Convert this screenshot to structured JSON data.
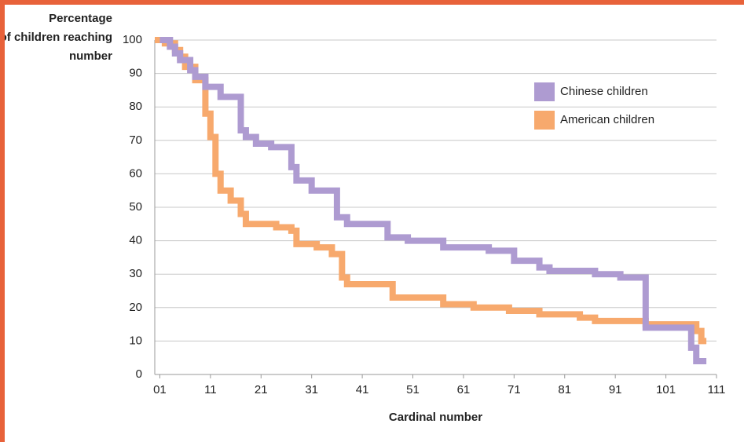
{
  "chart_data": {
    "type": "line",
    "step": true,
    "ylabel": "Percentage of children reaching number",
    "xlabel": "Cardinal number",
    "xlim": [
      0,
      111
    ],
    "ylim": [
      0,
      100
    ],
    "xticks": [
      {
        "value": 1,
        "label": "01"
      },
      11,
      21,
      31,
      41,
      51,
      61,
      71,
      81,
      91,
      101,
      111
    ],
    "yticks": [
      0,
      10,
      20,
      30,
      40,
      50,
      60,
      70,
      80,
      90,
      100
    ],
    "grid": true,
    "legend": "upper right",
    "series": [
      {
        "name": "Chinese children",
        "color": "#ae9bd1",
        "x": [
          1,
          3,
          4,
          5,
          7,
          8,
          10,
          13,
          17,
          18,
          20,
          23,
          27,
          28,
          31,
          36,
          38,
          46,
          50,
          57,
          66,
          71,
          76,
          78,
          87,
          92,
          97,
          106,
          107,
          109
        ],
        "values": [
          100,
          98,
          96,
          94,
          91,
          89,
          86,
          83,
          73,
          71,
          69,
          68,
          62,
          58,
          55,
          47,
          45,
          41,
          40,
          38,
          37,
          34,
          32,
          31,
          30,
          29,
          14,
          8,
          4,
          4
        ]
      },
      {
        "name": "American children",
        "color": "#f7a96d",
        "x": [
          0,
          2,
          4,
          5,
          6,
          8,
          10,
          11,
          12,
          13,
          15,
          17,
          18,
          24,
          27,
          28,
          32,
          35,
          37,
          38,
          47,
          57,
          63,
          70,
          76,
          84,
          87,
          97,
          107,
          108,
          109
        ],
        "values": [
          100,
          99,
          97,
          95,
          92,
          88,
          78,
          71,
          60,
          55,
          52,
          48,
          45,
          44,
          43,
          39,
          38,
          36,
          29,
          27,
          23,
          21,
          20,
          19,
          18,
          17,
          16,
          15,
          13,
          10,
          10
        ]
      }
    ]
  }
}
